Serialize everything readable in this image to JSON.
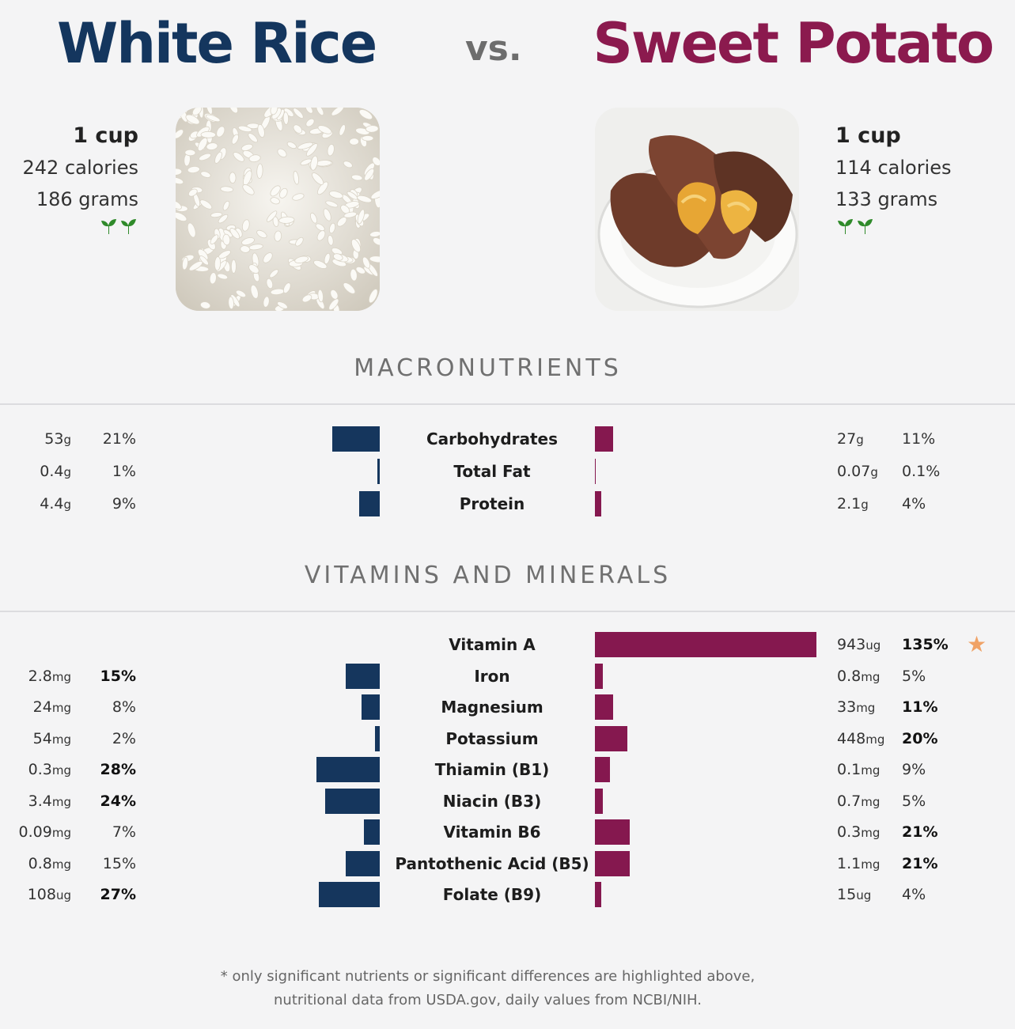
{
  "header": {
    "left_title": "White Rice",
    "vs": "vs.",
    "right_title": "Sweet Potato",
    "left_color": "#14365e",
    "right_color": "#8b1a4e"
  },
  "left_food": {
    "serving": "1 cup",
    "calories": "242 calories",
    "grams": "186 grams",
    "icon": "sprout-icon"
  },
  "right_food": {
    "serving": "1 cup",
    "calories": "114 calories",
    "grams": "133 grams",
    "icon": "sprout-icon"
  },
  "sections": {
    "macros": "MACRONUTRIENTS",
    "vitamins": "VITAMINS AND MINERALS"
  },
  "chart_data": {
    "type": "bar",
    "series_names": [
      "White Rice",
      "Sweet Potato"
    ],
    "macronutrients": [
      {
        "name": "Carbohydrates",
        "left_amount": "53",
        "left_unit": "g",
        "left_pct": "21%",
        "left_pct_value": 21,
        "left_bold": false,
        "right_amount": "27",
        "right_unit": "g",
        "right_pct": "11%",
        "right_pct_value": 11,
        "right_bold": false
      },
      {
        "name": "Total Fat",
        "left_amount": "0.4",
        "left_unit": "g",
        "left_pct": "1%",
        "left_pct_value": 1,
        "left_bold": false,
        "right_amount": "0.07",
        "right_unit": "g",
        "right_pct": "0.1%",
        "right_pct_value": 0.1,
        "right_bold": false
      },
      {
        "name": "Protein",
        "left_amount": "4.4",
        "left_unit": "g",
        "left_pct": "9%",
        "left_pct_value": 9,
        "left_bold": false,
        "right_amount": "2.1",
        "right_unit": "g",
        "right_pct": "4%",
        "right_pct_value": 4,
        "right_bold": false
      }
    ],
    "vitamins_minerals": [
      {
        "name": "Vitamin A",
        "left_amount": "",
        "left_unit": "",
        "left_pct": "",
        "left_pct_value": 0,
        "left_bold": false,
        "right_amount": "943",
        "right_unit": "ug",
        "right_pct": "135%",
        "right_pct_value": 135,
        "right_bold": true,
        "star": true
      },
      {
        "name": "Iron",
        "left_amount": "2.8",
        "left_unit": "mg",
        "left_pct": "15%",
        "left_pct_value": 15,
        "left_bold": true,
        "right_amount": "0.8",
        "right_unit": "mg",
        "right_pct": "5%",
        "right_pct_value": 5,
        "right_bold": false
      },
      {
        "name": "Magnesium",
        "left_amount": "24",
        "left_unit": "mg",
        "left_pct": "8%",
        "left_pct_value": 8,
        "left_bold": false,
        "right_amount": "33",
        "right_unit": "mg",
        "right_pct": "11%",
        "right_pct_value": 11,
        "right_bold": true
      },
      {
        "name": "Potassium",
        "left_amount": "54",
        "left_unit": "mg",
        "left_pct": "2%",
        "left_pct_value": 2,
        "left_bold": false,
        "right_amount": "448",
        "right_unit": "mg",
        "right_pct": "20%",
        "right_pct_value": 20,
        "right_bold": true
      },
      {
        "name": "Thiamin (B1)",
        "left_amount": "0.3",
        "left_unit": "mg",
        "left_pct": "28%",
        "left_pct_value": 28,
        "left_bold": true,
        "right_amount": "0.1",
        "right_unit": "mg",
        "right_pct": "9%",
        "right_pct_value": 9,
        "right_bold": false
      },
      {
        "name": "Niacin (B3)",
        "left_amount": "3.4",
        "left_unit": "mg",
        "left_pct": "24%",
        "left_pct_value": 24,
        "left_bold": true,
        "right_amount": "0.7",
        "right_unit": "mg",
        "right_pct": "5%",
        "right_pct_value": 5,
        "right_bold": false
      },
      {
        "name": "Vitamin B6",
        "left_amount": "0.09",
        "left_unit": "mg",
        "left_pct": "7%",
        "left_pct_value": 7,
        "left_bold": false,
        "right_amount": "0.3",
        "right_unit": "mg",
        "right_pct": "21%",
        "right_pct_value": 21,
        "right_bold": true
      },
      {
        "name": "Pantothenic Acid (B5)",
        "left_amount": "0.8",
        "left_unit": "mg",
        "left_pct": "15%",
        "left_pct_value": 15,
        "left_bold": false,
        "right_amount": "1.1",
        "right_unit": "mg",
        "right_pct": "21%",
        "right_pct_value": 21,
        "right_bold": true
      },
      {
        "name": "Folate (B9)",
        "left_amount": "108",
        "left_unit": "ug",
        "left_pct": "27%",
        "left_pct_value": 27,
        "left_bold": true,
        "right_amount": "15",
        "right_unit": "ug",
        "right_pct": "4%",
        "right_pct_value": 4,
        "right_bold": false
      }
    ]
  },
  "footnote": {
    "line1": "* only significant nutrients or significant differences are highlighted above,",
    "line2": "nutritional data from USDA.gov, daily values from NCBI/NIH."
  }
}
